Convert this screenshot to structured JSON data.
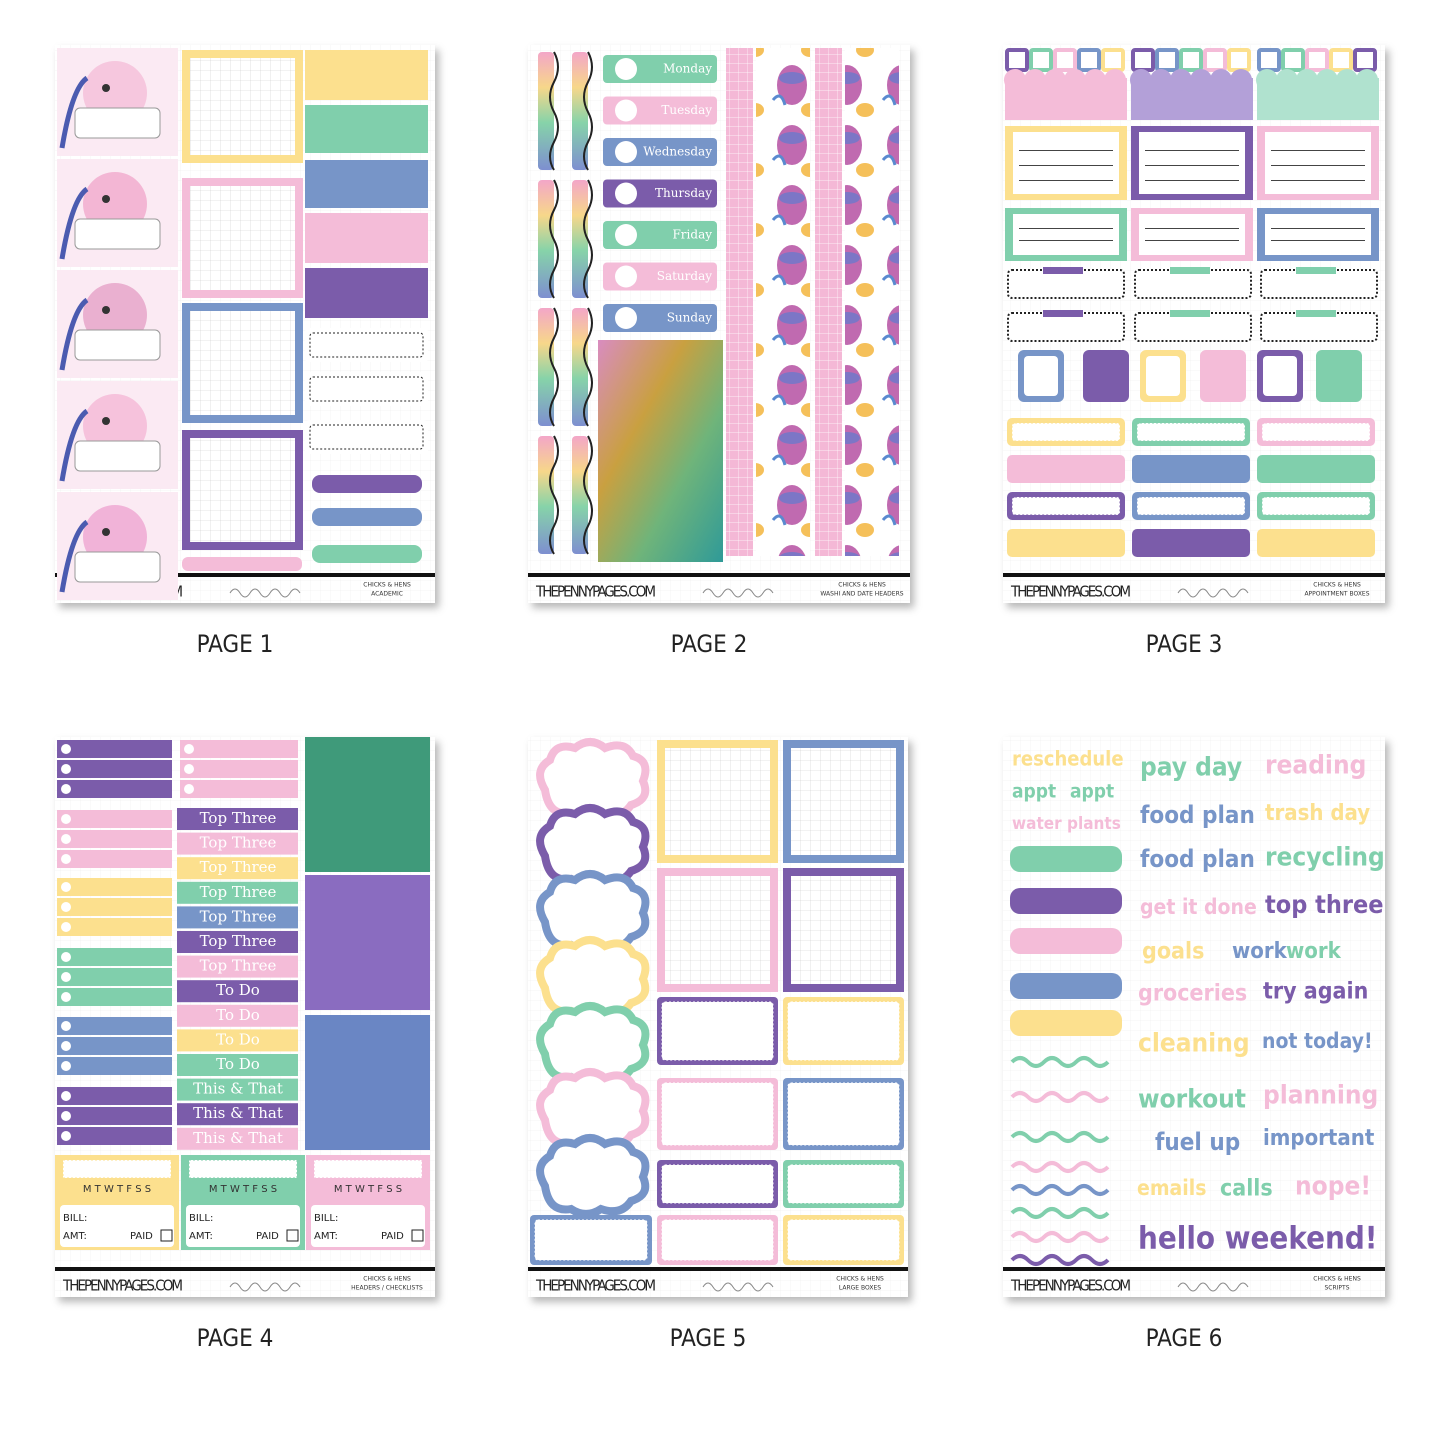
{
  "pages": [
    {
      "label": "PAGE 1",
      "site": "THEPENNYPAGES.COM",
      "collection": "CHICKS & HENS",
      "kind": "ACADEMIC"
    },
    {
      "label": "PAGE 2",
      "site": "THEPENNYPAGES.COM",
      "collection": "CHICKS & HENS",
      "kind": "WASHI AND DATE HEADERS",
      "days": [
        "Monday",
        "Tuesday",
        "Wednesday",
        "Thursday",
        "Friday",
        "Saturday",
        "Sunday"
      ]
    },
    {
      "label": "PAGE 3",
      "site": "THEPENNYPAGES.COM",
      "collection": "CHICKS & HENS",
      "kind": "APPOINTMENT BOXES"
    },
    {
      "label": "PAGE 4",
      "site": "THEPENNYPAGES.COM",
      "collection": "CHICKS & HENS",
      "kind": "HEADERS / CHECKLISTS",
      "headers": [
        "Top Three",
        "Top Three",
        "Top Three",
        "Top Three",
        "Top Three",
        "Top Three",
        "Top Three",
        "To Do",
        "To Do",
        "To Do",
        "To Do",
        "This & That",
        "This & That",
        "This & That"
      ],
      "trackers": [
        {
          "days": "M T W T F S S",
          "bill": "BILL:",
          "amt": "AMT:",
          "paid": "PAID"
        },
        {
          "days": "M T W T F S S",
          "bill": "BILL:",
          "amt": "AMT:",
          "paid": "PAID"
        },
        {
          "days": "M T W T F S S",
          "bill": "BILL:",
          "amt": "AMT:",
          "paid": "PAID"
        }
      ]
    },
    {
      "label": "PAGE 5",
      "site": "THEPENNYPAGES.COM",
      "collection": "CHICKS & HENS",
      "kind": "LARGE BOXES"
    },
    {
      "label": "PAGE 6",
      "site": "THEPENNYPAGES.COM",
      "collection": "CHICKS & HENS",
      "kind": "SCRIPTS",
      "words": [
        "reschedule",
        "appt",
        "appt",
        "water plants",
        "pay day",
        "reading",
        "food plan",
        "trash day",
        "food plan",
        "recycling",
        "get it done",
        "top three",
        "goals",
        "work",
        "work",
        "groceries",
        "try again",
        "cleaning",
        "not today!",
        "workout",
        "planning",
        "fuel up",
        "important",
        "emails",
        "calls",
        "nope!",
        "hello weekend!"
      ]
    }
  ]
}
